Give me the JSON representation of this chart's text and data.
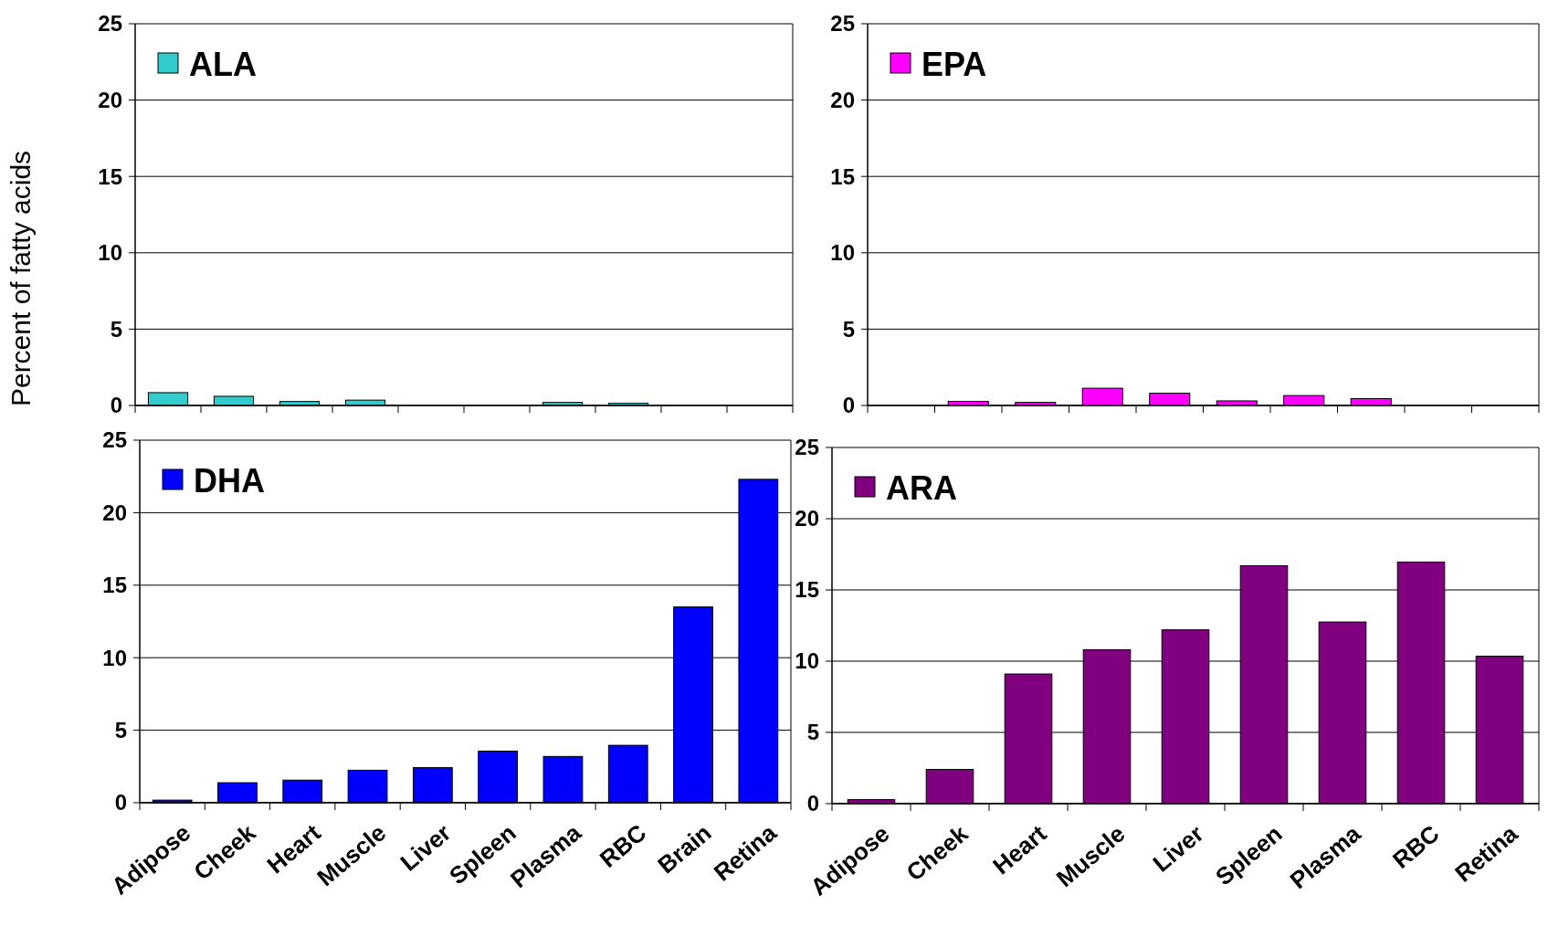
{
  "chart_data": [
    {
      "type": "bar",
      "categories": [
        null,
        null,
        null,
        null,
        null,
        null,
        null,
        null,
        null,
        null
      ],
      "series": [
        {
          "name": "ALA",
          "color": "#33cccc",
          "values": [
            0.84,
            0.6,
            0.26,
            0.35,
            0,
            0,
            0.2,
            0.14,
            0,
            0
          ]
        }
      ],
      "ylim": [
        0,
        25
      ],
      "yticks": [
        0,
        5,
        10,
        15,
        20,
        25
      ],
      "grid": "y",
      "legend": "top left",
      "tick_labels": "y"
    },
    {
      "type": "bar",
      "categories": [
        null,
        null,
        null,
        null,
        null,
        null,
        null,
        null,
        null,
        null
      ],
      "series": [
        {
          "name": "EPA",
          "color": "#ff00ff",
          "values": [
            0,
            0.27,
            0.2,
            1.13,
            0.8,
            0.3,
            0.65,
            0.45,
            0,
            0
          ]
        }
      ],
      "ylim": [
        0,
        25
      ],
      "yticks": [
        0,
        5,
        10,
        15,
        20,
        25
      ],
      "grid": "y",
      "legend": "top left",
      "tick_labels": "y"
    },
    {
      "type": "bar",
      "ylabel": "Percent of fatty acids",
      "categories": [
        "Adipose",
        "Cheek",
        "Heart",
        "Muscle",
        "Liver",
        "Spleen",
        "Plasma",
        "RBC",
        "Brain",
        "Retina"
      ],
      "series": [
        {
          "name": "DHA",
          "color": "#0000ff",
          "values": [
            0.18,
            1.38,
            1.56,
            2.24,
            2.42,
            3.56,
            3.19,
            3.96,
            13.5,
            22.3
          ]
        }
      ],
      "ylim": [
        0,
        25
      ],
      "yticks": [
        0,
        5,
        10,
        15,
        20,
        25
      ],
      "grid": "y",
      "legend": "top left"
    },
    {
      "type": "bar",
      "categories": [
        "Adipose",
        "Cheek",
        "Heart",
        "Muscle",
        "Liver",
        "Spleen",
        "Plasma",
        "RBC",
        "Retina"
      ],
      "series": [
        {
          "name": "ARA",
          "color": "#800080",
          "values": [
            0.28,
            2.4,
            9.1,
            10.8,
            12.2,
            16.7,
            12.75,
            16.96,
            10.35
          ]
        }
      ],
      "ylim": [
        0,
        25
      ],
      "yticks": [
        0,
        5,
        10,
        15,
        20,
        25
      ],
      "grid": "y",
      "legend": "top left"
    }
  ]
}
